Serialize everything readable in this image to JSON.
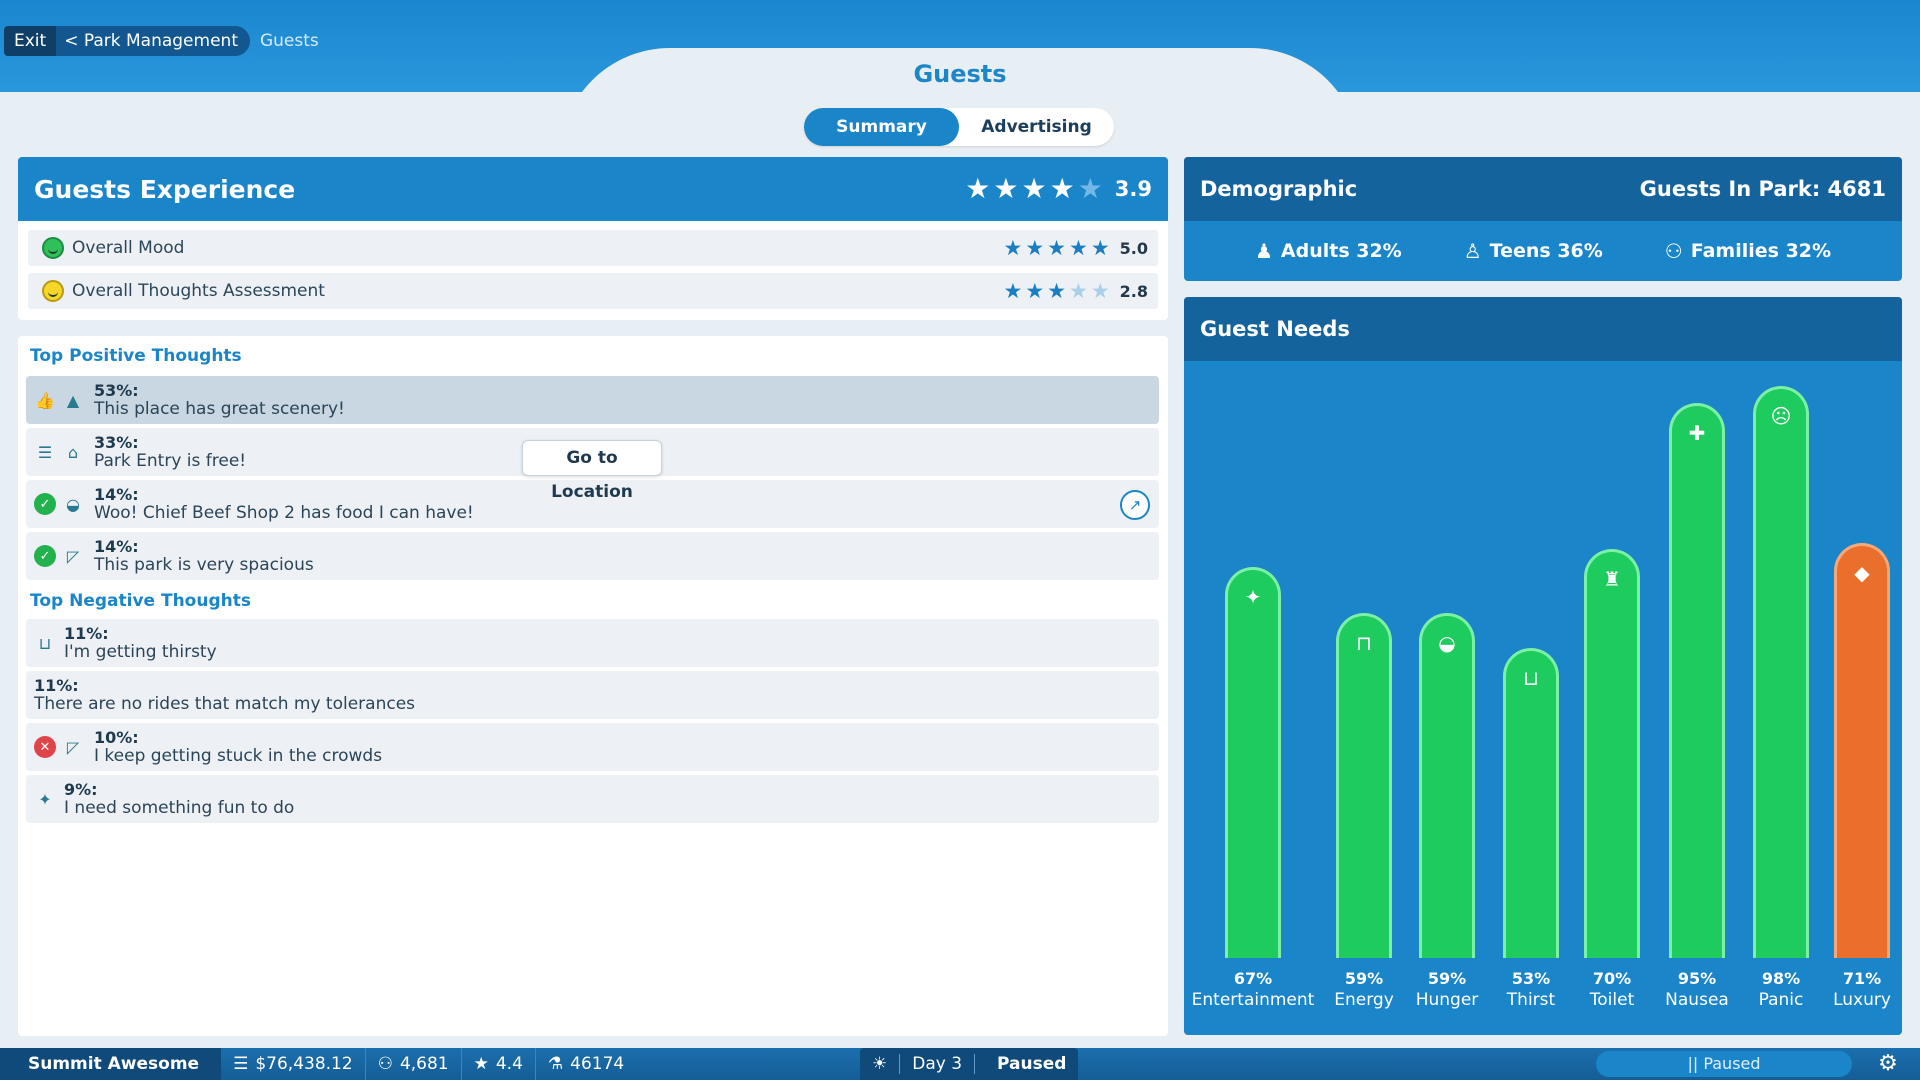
{
  "breadcrumb": {
    "exit": "Exit",
    "park": "< Park Management",
    "current": "Guests"
  },
  "page_title": "Guests",
  "tabs": [
    {
      "label": "Summary",
      "active": true
    },
    {
      "label": "Advertising",
      "active": false
    }
  ],
  "experience": {
    "title": "Guests Experience",
    "rating": "3.9",
    "stars": 3.9,
    "rows": [
      {
        "label": "Overall Mood",
        "rating": "5.0",
        "stars": 5.0,
        "icon": "green-smile-face-icon"
      },
      {
        "label": "Overall Thoughts Assessment",
        "rating": "2.8",
        "stars": 2.8,
        "icon": "yellow-smile-face-icon"
      }
    ]
  },
  "positive": {
    "title": "Top Positive Thoughts",
    "items": [
      {
        "pct": "53%:",
        "text": "This place has great scenery!",
        "icons": [
          "thumbs-up-icon",
          "tree-icon"
        ]
      },
      {
        "pct": "33%:",
        "text": "Park Entry is free!",
        "icons": [
          "coins-icon",
          "gate-icon"
        ]
      },
      {
        "pct": "14%:",
        "text": "Woo! Chief Beef Shop 2 has food I can have!",
        "icons": [
          "check-icon",
          "burger-icon"
        ]
      },
      {
        "pct": "14%:",
        "text": "This park is very spacious",
        "icons": [
          "check-icon",
          "crowd-icon"
        ]
      }
    ]
  },
  "negative": {
    "title": "Top Negative Thoughts",
    "items": [
      {
        "pct": "11%:",
        "text": "I'm getting thirsty",
        "icons": [
          "cup-icon"
        ]
      },
      {
        "pct": "11%:",
        "text": "There are no rides that match my tolerances",
        "icons": []
      },
      {
        "pct": "10%:",
        "text": "I keep getting stuck in the crowds",
        "icons": [
          "x-icon",
          "crowd-icon"
        ]
      },
      {
        "pct": "9%:",
        "text": "I need something fun to do",
        "icons": [
          "party-icon"
        ]
      }
    ]
  },
  "go_location": "Go to Location",
  "demographic": {
    "title": "Demographic",
    "guests_in_park": "Guests In Park: 4681",
    "groups": [
      {
        "label": "Adults 32%",
        "icon": "adult-icon"
      },
      {
        "label": "Teens 36%",
        "icon": "teen-icon"
      },
      {
        "label": "Families 32%",
        "icon": "family-icon"
      }
    ]
  },
  "needs": {
    "title": "Guest Needs",
    "items": [
      {
        "name": "Entertainment",
        "pct_label": "67%",
        "value": 67,
        "icon": "party-popper-icon",
        "status": "good"
      },
      {
        "name": "Energy",
        "pct_label": "59%",
        "value": 59,
        "icon": "bench-icon",
        "status": "good"
      },
      {
        "name": "Hunger",
        "pct_label": "59%",
        "value": 59,
        "icon": "burger-icon",
        "status": "good"
      },
      {
        "name": "Thirst",
        "pct_label": "53%",
        "value": 53,
        "icon": "cup-icon",
        "status": "good"
      },
      {
        "name": "Toilet",
        "pct_label": "70%",
        "value": 70,
        "icon": "toilet-icon",
        "status": "good"
      },
      {
        "name": "Nausea",
        "pct_label": "95%",
        "value": 95,
        "icon": "first-aid-icon",
        "status": "good"
      },
      {
        "name": "Panic",
        "pct_label": "98%",
        "value": 98,
        "icon": "scared-face-icon",
        "status": "good"
      },
      {
        "name": "Luxury",
        "pct_label": "71%",
        "value": 71,
        "icon": "diamond-icon",
        "status": "warn"
      }
    ]
  },
  "status_bar": {
    "park_name": "Summit Awesome",
    "money": "$76,438.12",
    "guests": "4,681",
    "rating": "4.4",
    "research": "46174",
    "day": "Day 3",
    "state": "Paused",
    "paused_button": "|| Paused"
  },
  "colors": {
    "primary_blue": "#1b85c9",
    "dark_blue": "#15639d",
    "bar_green": "#1ecb5f",
    "bar_orange": "#ea6f2c"
  }
}
